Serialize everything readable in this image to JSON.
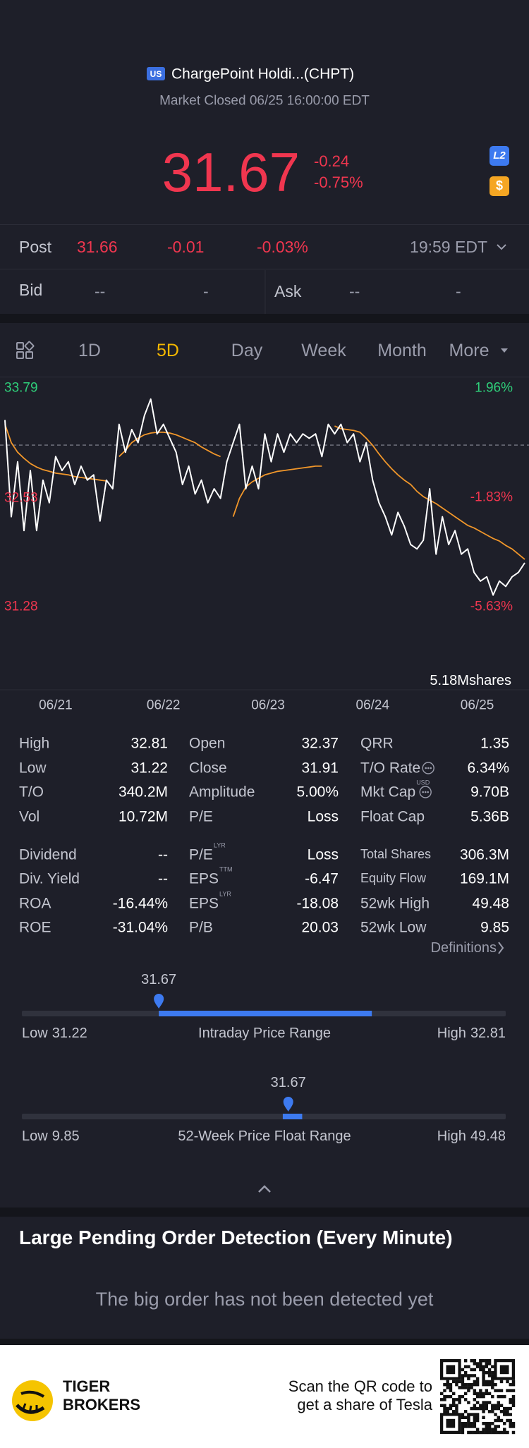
{
  "header": {
    "market": "US",
    "name": "ChargePoint Holdi...(CHPT)",
    "status": "Market Closed 06/25 16:00:00 EDT"
  },
  "quote": {
    "price": "31.67",
    "change": "-0.24",
    "change_pct": "-0.75%",
    "badge": "L2",
    "badge2": "$"
  },
  "post": {
    "label": "Post",
    "price": "31.66",
    "change": "-0.01",
    "change_pct": "-0.03%",
    "time": "19:59 EDT"
  },
  "bid": {
    "label": "Bid",
    "price": "--",
    "size": "-"
  },
  "ask": {
    "label": "Ask",
    "price": "--",
    "size": "-"
  },
  "tabs": [
    "1D",
    "5D",
    "Day",
    "Week",
    "Month",
    "More"
  ],
  "active_tab": 1,
  "chart_data": {
    "type": "line",
    "xlim": [
      0,
      82
    ],
    "xticks": [
      {
        "value": 8,
        "label": "06/21"
      },
      {
        "value": 25,
        "label": "06/22"
      },
      {
        "value": 41.5,
        "label": "06/23"
      },
      {
        "value": 58,
        "label": "06/24"
      },
      {
        "value": 74.5,
        "label": "06/25"
      }
    ],
    "ylim": [
      31.28,
      33.79
    ],
    "yticks": [
      33.79,
      32.53,
      31.28
    ],
    "y2lim": [
      -5.63,
      1.96
    ],
    "y2ticks": [
      {
        "value": 1.96,
        "label": "1.96%"
      },
      {
        "value": -1.83,
        "label": "-1.83%"
      },
      {
        "value": -5.63,
        "label": "-5.63%"
      }
    ],
    "up_color": "#2fcf7a",
    "down_color": "#f0364f",
    "volume_label": "5.18Mshares",
    "series": [
      {
        "color": "#ffffff",
        "values": [
          33.43,
          32.32,
          32.95,
          32.16,
          32.85,
          32.16,
          32.74,
          32.48,
          33.01,
          32.85,
          32.95,
          32.69,
          32.9,
          32.74,
          32.8,
          32.27,
          32.74,
          32.64,
          33.38,
          33.06,
          33.32,
          33.17,
          33.48,
          33.67,
          33.27,
          33.38,
          33.22,
          33.06,
          32.69,
          32.9,
          32.58,
          32.74,
          32.48,
          32.64,
          32.53,
          32.95,
          33.17,
          33.38,
          32.64,
          32.9,
          32.64,
          33.27,
          32.95,
          33.27,
          33.06,
          33.27,
          33.17,
          33.27,
          33.22,
          33.27,
          33.01,
          33.38,
          33.27,
          33.38,
          33.17,
          33.27,
          32.95,
          33.17,
          32.74,
          32.48,
          32.32,
          32.11,
          32.37,
          32.21,
          32.0,
          31.95,
          32.05,
          32.64,
          31.89,
          32.32,
          32.0,
          32.16,
          31.89,
          31.95,
          31.68,
          31.58,
          31.63,
          31.42,
          31.58,
          31.52,
          31.63,
          31.68,
          31.79
        ]
      },
      {
        "color": "#f0962a",
        "values": [
          33.38,
          33.17,
          33.06,
          32.99,
          32.93,
          32.89,
          32.86,
          32.84,
          32.82,
          32.81,
          32.8,
          32.78,
          32.77,
          32.76,
          32.75,
          32.74,
          32.73,
          null,
          33.01,
          33.08,
          33.17,
          33.22,
          33.26,
          33.28,
          33.29,
          33.29,
          33.28,
          33.26,
          33.23,
          33.2,
          33.17,
          33.12,
          33.08,
          33.04,
          33.01,
          null,
          32.32,
          32.53,
          32.66,
          32.72,
          32.76,
          32.8,
          32.82,
          32.84,
          32.85,
          32.86,
          32.87,
          32.88,
          32.89,
          32.9,
          32.9,
          null,
          33.36,
          33.33,
          33.32,
          33.31,
          33.29,
          33.22,
          33.14,
          33.04,
          32.95,
          32.87,
          32.8,
          32.74,
          32.69,
          32.61,
          32.55,
          32.51,
          32.47,
          32.42,
          32.37,
          32.32,
          32.27,
          32.22,
          32.19,
          32.15,
          32.11,
          32.07,
          32.04,
          31.99,
          31.95,
          31.89,
          31.83
        ]
      }
    ]
  },
  "stats": [
    [
      {
        "label": "High",
        "value": "32.81"
      },
      {
        "label": "Open",
        "value": "32.37"
      },
      {
        "label": "QRR",
        "value": "1.35"
      }
    ],
    [
      {
        "label": "Low",
        "value": "31.22"
      },
      {
        "label": "Close",
        "value": "31.91"
      },
      {
        "label": "T/O Rate",
        "value": "6.34%",
        "info": true
      }
    ],
    [
      {
        "label": "T/O",
        "value": "340.2M"
      },
      {
        "label": "Amplitude",
        "value": "5.00%"
      },
      {
        "label": "Mkt Cap",
        "sup": "USD",
        "value": "9.70B",
        "info": true
      }
    ],
    [
      {
        "label": "Vol",
        "value": "10.72M"
      },
      {
        "label": "P/E",
        "value": "Loss"
      },
      {
        "label": "Float Cap",
        "value": "5.36B"
      }
    ],
    [
      {
        "label": "Dividend",
        "value": "--"
      },
      {
        "label": "P/E",
        "sup": "LYR",
        "value": "Loss"
      },
      {
        "label": "Total Shares",
        "value": "306.3M"
      }
    ],
    [
      {
        "label": "Div. Yield",
        "value": "--"
      },
      {
        "label": "EPS",
        "sup": "TTM",
        "value": "-6.47"
      },
      {
        "label": "Equity Flow",
        "value": "169.1M"
      }
    ],
    [
      {
        "label": "ROA",
        "value": "-16.44%"
      },
      {
        "label": "EPS",
        "sup": "LYR",
        "value": "-18.08"
      },
      {
        "label": "52wk High",
        "value": "49.48"
      }
    ],
    [
      {
        "label": "ROE",
        "value": "-31.04%"
      },
      {
        "label": "P/B",
        "value": "20.03"
      },
      {
        "label": "52wk Low",
        "value": "9.85"
      }
    ]
  ],
  "definitions": "Definitions",
  "ranges": [
    {
      "current": 31.67,
      "low_prefix": "Low",
      "low": 31.22,
      "title": "Intraday Price Range",
      "high_prefix": "High",
      "high": 32.81,
      "fill": [
        31.67,
        32.37
      ]
    },
    {
      "current": 31.67,
      "low_prefix": "Low",
      "low": 9.85,
      "title": "52-Week Price Float Range",
      "high_prefix": "High",
      "high": 49.48,
      "fill": [
        31.22,
        32.81
      ]
    }
  ],
  "pending": {
    "title": "Large Pending Order Detection (Every Minute)",
    "message": "The big order has not been detected yet"
  },
  "footer": {
    "brand1": "TIGER",
    "brand2": "BROKERS",
    "line1": "Scan the QR code to",
    "line2": "get a share of Tesla"
  }
}
